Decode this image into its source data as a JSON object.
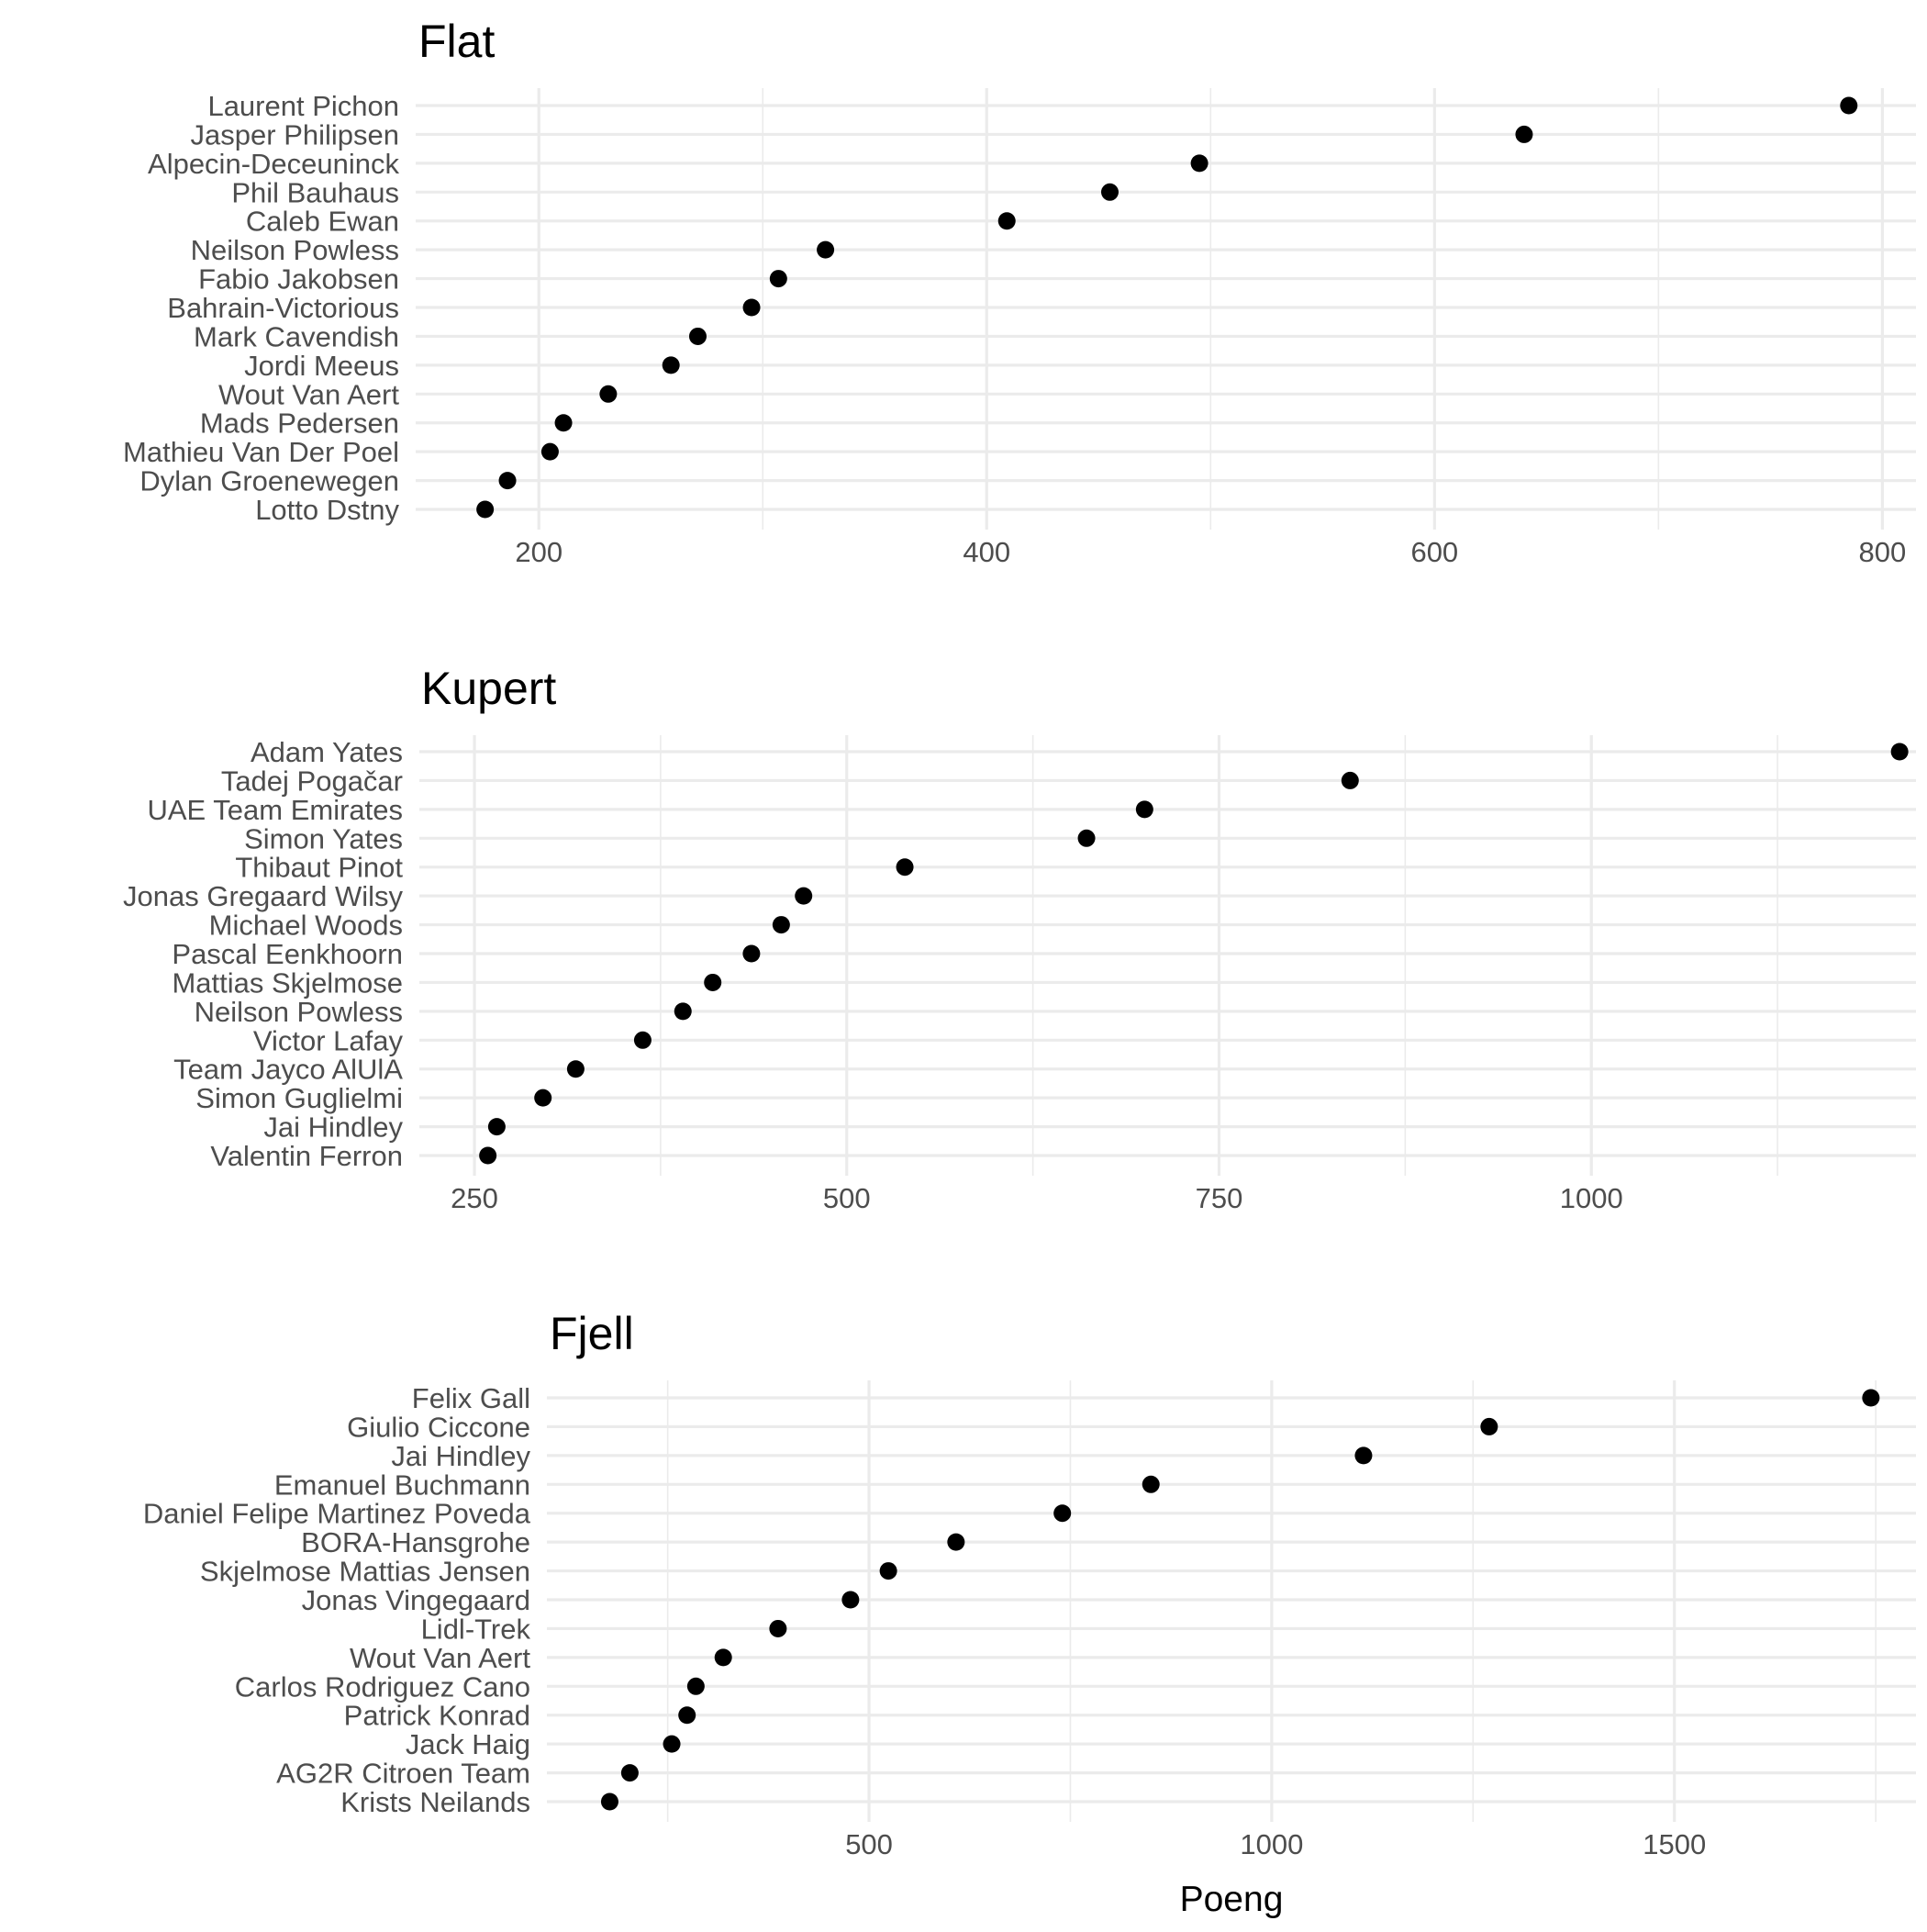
{
  "chart_data": [
    {
      "type": "scatter",
      "title": "Flat",
      "xlabel": "",
      "ylabel": "",
      "xlim": [
        145,
        815
      ],
      "xticks": [
        200,
        400,
        600,
        800
      ],
      "grid": true,
      "categories": [
        "Laurent Pichon",
        "Jasper Philipsen",
        "Alpecin-Deceuninck",
        "Phil Bauhaus",
        "Caleb Ewan",
        "Neilson Powless",
        "Fabio Jakobsen",
        "Bahrain-Victorious",
        "Mark Cavendish",
        "Jordi Meeus",
        "Wout Van Aert",
        "Mads Pedersen",
        "Mathieu Van Der Poel",
        "Dylan Groenewegen",
        "Lotto Dstny"
      ],
      "values": [
        785,
        640,
        495,
        455,
        409,
        328,
        307,
        295,
        271,
        259,
        231,
        211,
        205,
        186,
        176
      ]
    },
    {
      "type": "scatter",
      "title": "Kupert",
      "xlabel": "",
      "ylabel": "",
      "xlim": [
        213,
        1218
      ],
      "xticks": [
        250,
        500,
        750,
        1000
      ],
      "grid": true,
      "categories": [
        "Adam Yates",
        "Tadej Pogačar",
        "UAE Team Emirates",
        "Simon Yates",
        "Thibaut Pinot",
        "Jonas Gregaard Wilsy",
        "Michael Woods",
        "Pascal Eenkhoorn",
        "Mattias Skjelmose",
        "Neilson Powless",
        "Victor Lafay",
        "Team Jayco AlUlA",
        "Simon Guglielmi",
        "Jai Hindley",
        "Valentin Ferron"
      ],
      "values": [
        1207,
        838,
        700,
        661,
        539,
        471,
        456,
        436,
        410,
        390,
        363,
        318,
        296,
        265,
        259
      ]
    },
    {
      "type": "scatter",
      "title": "Fjell",
      "xlabel": "Poeng",
      "ylabel": "",
      "xlim": [
        100,
        1800
      ],
      "xticks": [
        500,
        1000,
        1500
      ],
      "grid": true,
      "categories": [
        "Felix Gall",
        "Giulio Ciccone",
        "Jai Hindley",
        "Emanuel Buchmann",
        "Daniel Felipe Martinez Poveda",
        "BORA-Hansgrohe",
        "Skjelmose  Mattias Jensen",
        "Jonas Vingegaard",
        "Lidl-Trek",
        "Wout Van Aert",
        "Carlos Rodriguez Cano",
        "Patrick Konrad",
        "Jack Haig",
        "AG2R Citroen Team",
        "Krists Neilands"
      ],
      "values": [
        1744,
        1270,
        1114,
        850,
        740,
        608,
        524,
        477,
        387,
        319,
        285,
        274,
        255,
        203,
        178
      ]
    }
  ]
}
